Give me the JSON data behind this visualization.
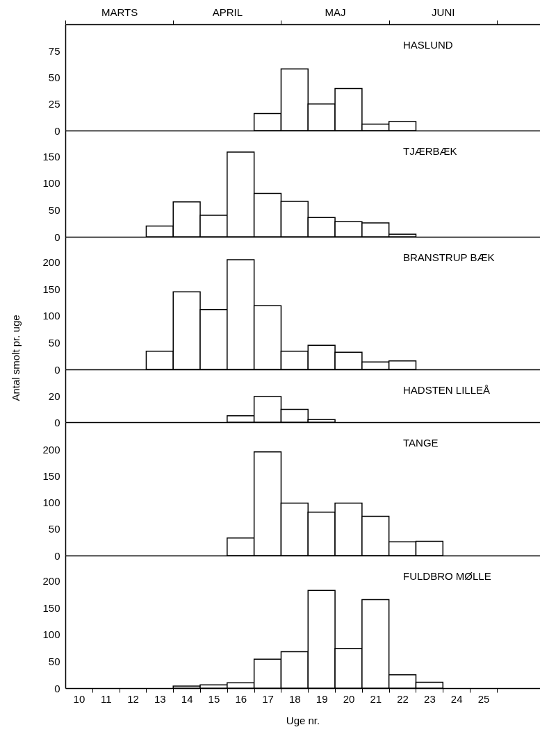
{
  "chart_data": [
    {
      "type": "histogram",
      "title": "HASLUND",
      "bins": [
        16.5,
        17.5,
        18.5,
        19.5,
        20.5,
        21.5,
        22.5
      ],
      "values": [
        16,
        58,
        25,
        39.5,
        6,
        8.5
      ],
      "color": "#ffffff",
      "xlim": [
        9.5,
        27.1
      ],
      "ylim": [
        0,
        100
      ],
      "yticks": [
        0,
        25,
        50,
        75
      ],
      "tick_labels": "y",
      "annotations": [
        "MARTS",
        "APRIL",
        "MAJ",
        "JUNI"
      ]
    },
    {
      "type": "histogram",
      "title": "TJÆRBÆK",
      "bins": [
        12.5,
        13.5,
        14.5,
        15.5,
        16.5,
        17.5,
        18.5,
        19.5,
        20.5,
        21.5,
        22.5
      ],
      "values": [
        20,
        65,
        40,
        158,
        81,
        66,
        36,
        28,
        26,
        5
      ],
      "color": "#ffffff",
      "xlim": [
        9.5,
        27.1
      ],
      "ylim": [
        0,
        198
      ],
      "yticks": [
        0,
        50,
        100,
        150
      ],
      "tick_labels": "y"
    },
    {
      "type": "histogram",
      "title": "BRANSTRUP BÆK",
      "bins": [
        12.5,
        13.5,
        14.5,
        15.5,
        16.5,
        17.5,
        18.5,
        19.5,
        20.5,
        21.5,
        22.5
      ],
      "values": [
        34,
        145,
        112,
        205,
        119,
        34,
        45,
        32,
        14,
        16
      ],
      "color": "#ffffff",
      "xlim": [
        9.5,
        27.1
      ],
      "ylim": [
        0,
        248
      ],
      "yticks": [
        0,
        50,
        100,
        150,
        200
      ],
      "tick_labels": "y"
    },
    {
      "type": "histogram",
      "title": "HADSTEN LILLEÅ",
      "ylabel": "Antal smolt pr. uge",
      "bins": [
        15.5,
        16.5,
        17.5,
        18.5,
        19.5
      ],
      "values": [
        5,
        20,
        10,
        2
      ],
      "color": "#ffffff",
      "xlim": [
        9.5,
        27.1
      ],
      "ylim": [
        0,
        41
      ],
      "yticks": [
        0,
        20
      ],
      "tick_labels": "y"
    },
    {
      "type": "histogram",
      "title": "TANGE",
      "bins": [
        15.5,
        16.5,
        17.5,
        18.5,
        19.5,
        20.5,
        21.5,
        22.5,
        23.5
      ],
      "values": [
        33,
        196,
        99,
        82,
        99,
        74,
        26,
        27
      ],
      "color": "#ffffff",
      "xlim": [
        9.5,
        27.1
      ],
      "ylim": [
        0,
        252
      ],
      "yticks": [
        0,
        50,
        100,
        150,
        200
      ],
      "tick_labels": "y"
    },
    {
      "type": "histogram",
      "title": "FULDBRO MØLLE",
      "xlabel": "Uge nr.",
      "bins": [
        13.5,
        14.5,
        15.5,
        16.5,
        17.5,
        18.5,
        19.5,
        20.5,
        21.5,
        22.5,
        23.5
      ],
      "values": [
        4,
        6,
        10,
        54,
        68,
        182,
        74,
        165,
        25,
        11
      ],
      "color": "#ffffff",
      "xlim": [
        9.5,
        27.1
      ],
      "ylim": [
        0,
        247
      ],
      "yticks": [
        0,
        50,
        100,
        150,
        200
      ],
      "xticks": [
        {
          "value": 10.5,
          "label": null
        },
        {
          "value": 11.5,
          "label": null
        },
        {
          "value": 12.5,
          "label": null
        },
        {
          "value": 13.5,
          "label": null
        },
        {
          "value": 14.5,
          "label": null
        },
        {
          "value": 15.5,
          "label": null
        },
        {
          "value": 16.5,
          "label": null
        },
        {
          "value": 17.5,
          "label": null
        },
        {
          "value": 18.5,
          "label": null
        },
        {
          "value": 19.5,
          "label": null
        },
        {
          "value": 20.5,
          "label": null
        },
        {
          "value": 21.5,
          "label": null
        },
        {
          "value": 22.5,
          "label": null
        },
        {
          "value": 23.5,
          "label": null
        },
        {
          "value": 24.5,
          "label": null
        },
        {
          "value": 25.5,
          "label": null
        },
        10,
        11,
        12,
        13,
        14,
        15,
        16,
        17,
        18,
        19,
        20,
        21,
        22,
        23,
        24,
        25
      ]
    }
  ]
}
